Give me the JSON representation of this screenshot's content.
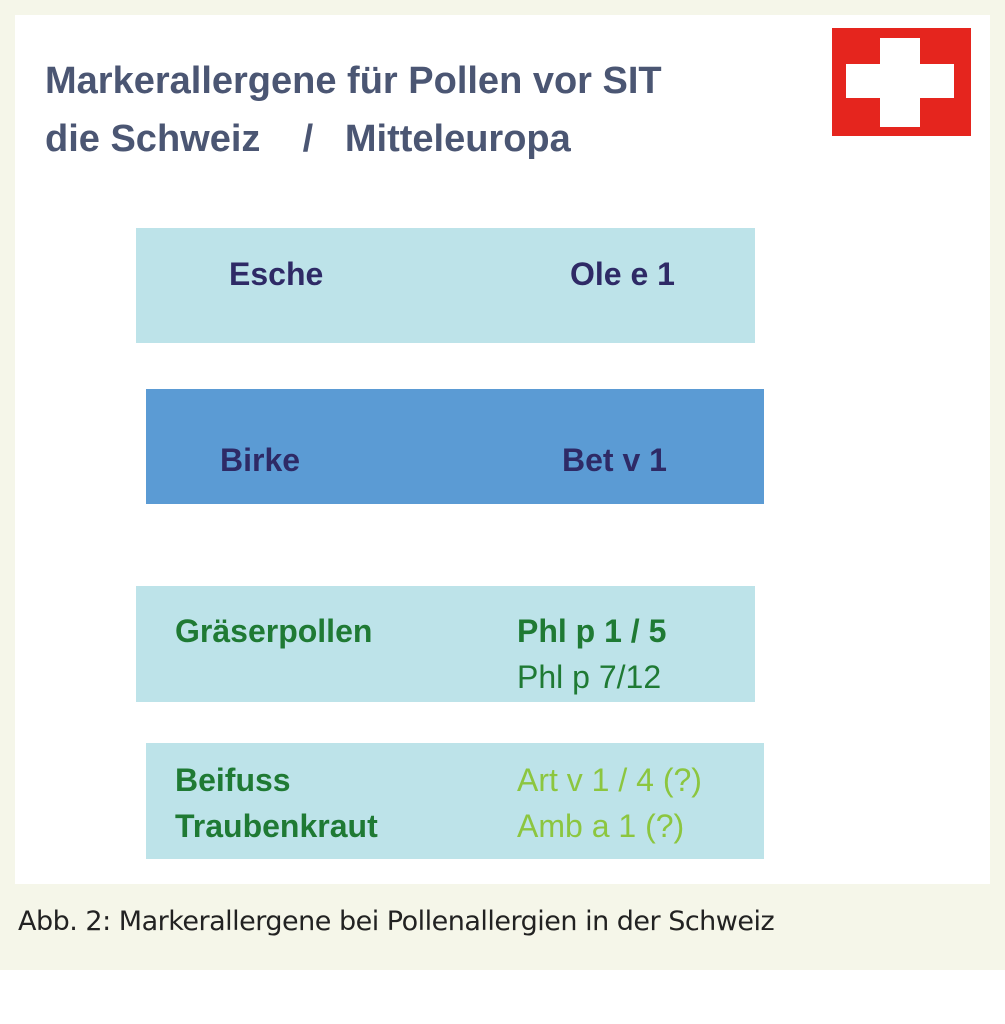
{
  "title": {
    "line1": "Markerallergene für Pollen vor SIT",
    "line2": "die Schweiz    /   Mitteleuropa"
  },
  "flag": {
    "icon": "swiss-flag-icon",
    "color": "#e5251e"
  },
  "rows": [
    {
      "pollen": [
        "Esche"
      ],
      "allergens": [
        "Ole e 1"
      ],
      "fill": "#bde3e9"
    },
    {
      "pollen": [
        "Birke"
      ],
      "allergens": [
        "Bet v 1"
      ],
      "fill": "#5b9bd4"
    },
    {
      "pollen": [
        "Gräserpollen"
      ],
      "allergens": [
        "Phl p 1 / 5",
        "Phl p 7/12"
      ],
      "fill": "#bde3e9"
    },
    {
      "pollen": [
        "Beifuss",
        "Traubenkraut"
      ],
      "allergens": [
        "Art v 1 / 4 (?)",
        "Amb a 1 (?)"
      ],
      "fill": "#bde3e9"
    }
  ],
  "caption": "Abb. 2: Markerallergene bei Pollenallergien in der Schweiz"
}
